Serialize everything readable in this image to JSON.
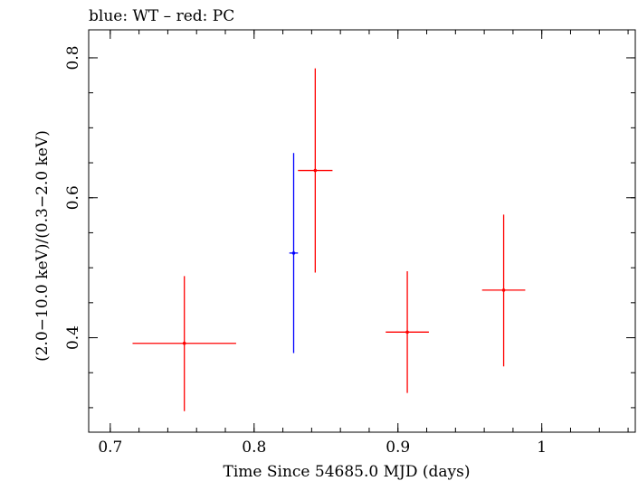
{
  "chart_data": {
    "type": "scatter",
    "title": "blue: WT – red: PC",
    "xlabel": "Time Since 54685.0 MJD (days)",
    "ylabel": "(2.0−10.0 keV)/(0.3−2.0 keV)",
    "xlim": [
      0.685,
      1.065
    ],
    "ylim": [
      0.265,
      0.84
    ],
    "xticks": [
      0.7,
      0.8,
      0.9,
      1.0
    ],
    "xtick_labels": [
      "0.7",
      "0.8",
      "0.9",
      "1"
    ],
    "yticks": [
      0.4,
      0.6,
      0.8
    ],
    "ytick_labels": [
      "0.4",
      "0.6",
      "0.8"
    ],
    "grid": false,
    "series": [
      {
        "name": "WT",
        "color": "#0000ff",
        "points": [
          {
            "x": 0.8275,
            "y": 0.521,
            "xerr": 0.003,
            "yerr_low": 0.143,
            "yerr_high": 0.143
          }
        ]
      },
      {
        "name": "PC",
        "color": "#ff0000",
        "points": [
          {
            "x": 0.7515,
            "y": 0.392,
            "xerr": 0.036,
            "yerr_low": 0.097,
            "yerr_high": 0.096
          },
          {
            "x": 0.8425,
            "y": 0.639,
            "xerr": 0.012,
            "yerr_low": 0.146,
            "yerr_high": 0.146
          },
          {
            "x": 0.9065,
            "y": 0.408,
            "xerr": 0.015,
            "yerr_low": 0.087,
            "yerr_high": 0.087
          },
          {
            "x": 0.9735,
            "y": 0.468,
            "xerr": 0.015,
            "yerr_low": 0.109,
            "yerr_high": 0.108
          }
        ]
      }
    ]
  }
}
